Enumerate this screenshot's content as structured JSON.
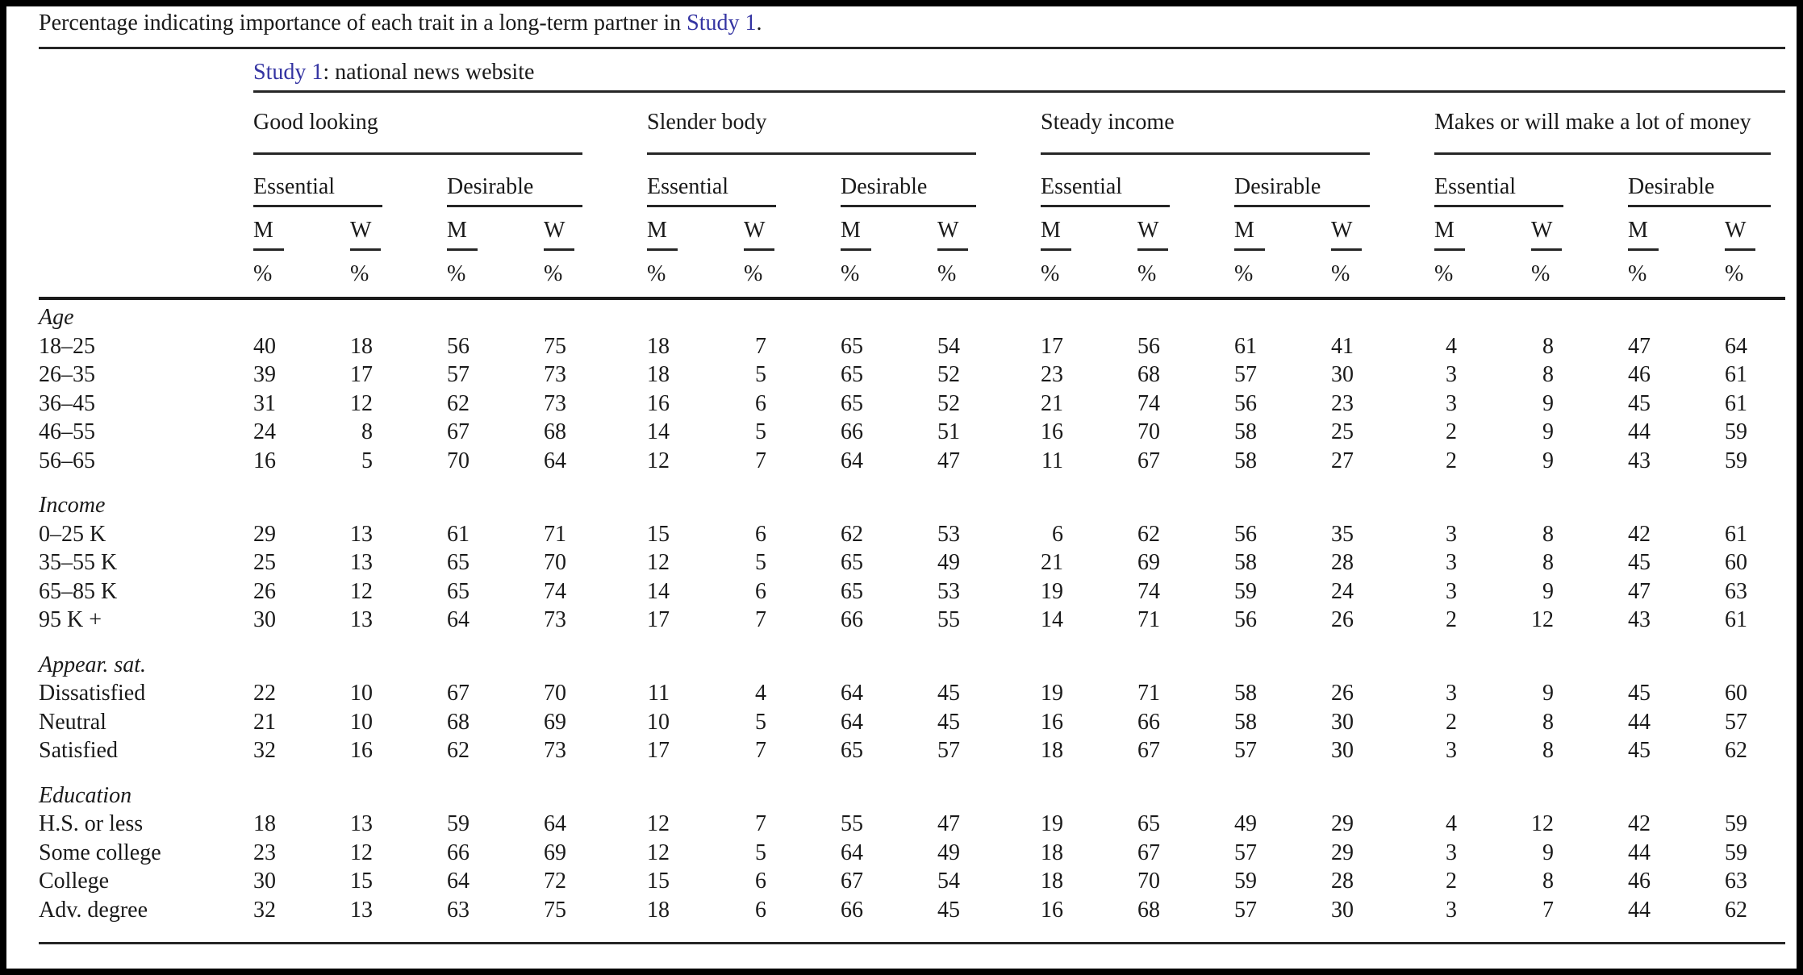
{
  "caption": {
    "prefix": "Percentage indicating importance of each trait in a long-term partner in ",
    "link_text": "Study 1",
    "suffix": "."
  },
  "table": {
    "spanner": {
      "link_text": "Study 1",
      "rest": ": national news website"
    },
    "trait_groups": [
      "Good looking",
      "Slender body",
      "Steady income",
      "Makes or will make a lot of money"
    ],
    "importance_levels": [
      "Essential",
      "Desirable"
    ],
    "sex_columns": [
      "M",
      "W"
    ],
    "unit": "%",
    "row_groups": [
      {
        "label": "Age",
        "rows": [
          {
            "label": "18–25",
            "values": [
              40,
              18,
              56,
              75,
              18,
              7,
              65,
              54,
              17,
              56,
              61,
              41,
              4,
              8,
              47,
              64
            ]
          },
          {
            "label": "26–35",
            "values": [
              39,
              17,
              57,
              73,
              18,
              5,
              65,
              52,
              23,
              68,
              57,
              30,
              3,
              8,
              46,
              61
            ]
          },
          {
            "label": "36–45",
            "values": [
              31,
              12,
              62,
              73,
              16,
              6,
              65,
              52,
              21,
              74,
              56,
              23,
              3,
              9,
              45,
              61
            ]
          },
          {
            "label": "46–55",
            "values": [
              24,
              8,
              67,
              68,
              14,
              5,
              66,
              51,
              16,
              70,
              58,
              25,
              2,
              9,
              44,
              59
            ]
          },
          {
            "label": "56–65",
            "values": [
              16,
              5,
              70,
              64,
              12,
              7,
              64,
              47,
              11,
              67,
              58,
              27,
              2,
              9,
              43,
              59
            ]
          }
        ]
      },
      {
        "label": "Income",
        "rows": [
          {
            "label": "0–25 K",
            "values": [
              29,
              13,
              61,
              71,
              15,
              6,
              62,
              53,
              6,
              62,
              56,
              35,
              3,
              8,
              42,
              61
            ]
          },
          {
            "label": "35–55 K",
            "values": [
              25,
              13,
              65,
              70,
              12,
              5,
              65,
              49,
              21,
              69,
              58,
              28,
              3,
              8,
              45,
              60
            ]
          },
          {
            "label": "65–85 K",
            "values": [
              26,
              12,
              65,
              74,
              14,
              6,
              65,
              53,
              19,
              74,
              59,
              24,
              3,
              9,
              47,
              63
            ]
          },
          {
            "label": "95 K +",
            "values": [
              30,
              13,
              64,
              73,
              17,
              7,
              66,
              55,
              14,
              71,
              56,
              26,
              2,
              12,
              43,
              61
            ]
          }
        ]
      },
      {
        "label": "Appear. sat.",
        "rows": [
          {
            "label": "Dissatisfied",
            "values": [
              22,
              10,
              67,
              70,
              11,
              4,
              64,
              45,
              19,
              71,
              58,
              26,
              3,
              9,
              45,
              60
            ]
          },
          {
            "label": "Neutral",
            "values": [
              21,
              10,
              68,
              69,
              10,
              5,
              64,
              45,
              16,
              66,
              58,
              30,
              2,
              8,
              44,
              57
            ]
          },
          {
            "label": "Satisfied",
            "values": [
              32,
              16,
              62,
              73,
              17,
              7,
              65,
              57,
              18,
              67,
              57,
              30,
              3,
              8,
              45,
              62
            ]
          }
        ]
      },
      {
        "label": "Education",
        "rows": [
          {
            "label": "H.S. or less",
            "values": [
              18,
              13,
              59,
              64,
              12,
              7,
              55,
              47,
              19,
              65,
              49,
              29,
              4,
              12,
              42,
              59
            ]
          },
          {
            "label": "Some college",
            "values": [
              23,
              12,
              66,
              69,
              12,
              5,
              64,
              49,
              18,
              67,
              57,
              29,
              3,
              9,
              44,
              59
            ]
          },
          {
            "label": "College",
            "values": [
              30,
              15,
              64,
              72,
              15,
              6,
              67,
              54,
              18,
              70,
              59,
              28,
              2,
              8,
              46,
              63
            ]
          },
          {
            "label": "Adv. degree",
            "values": [
              32,
              13,
              63,
              75,
              18,
              6,
              66,
              45,
              16,
              68,
              57,
              30,
              3,
              7,
              44,
              62
            ]
          }
        ]
      }
    ]
  },
  "colors": {
    "link_blue": "#3434a2",
    "text": "#1a1a1a"
  }
}
